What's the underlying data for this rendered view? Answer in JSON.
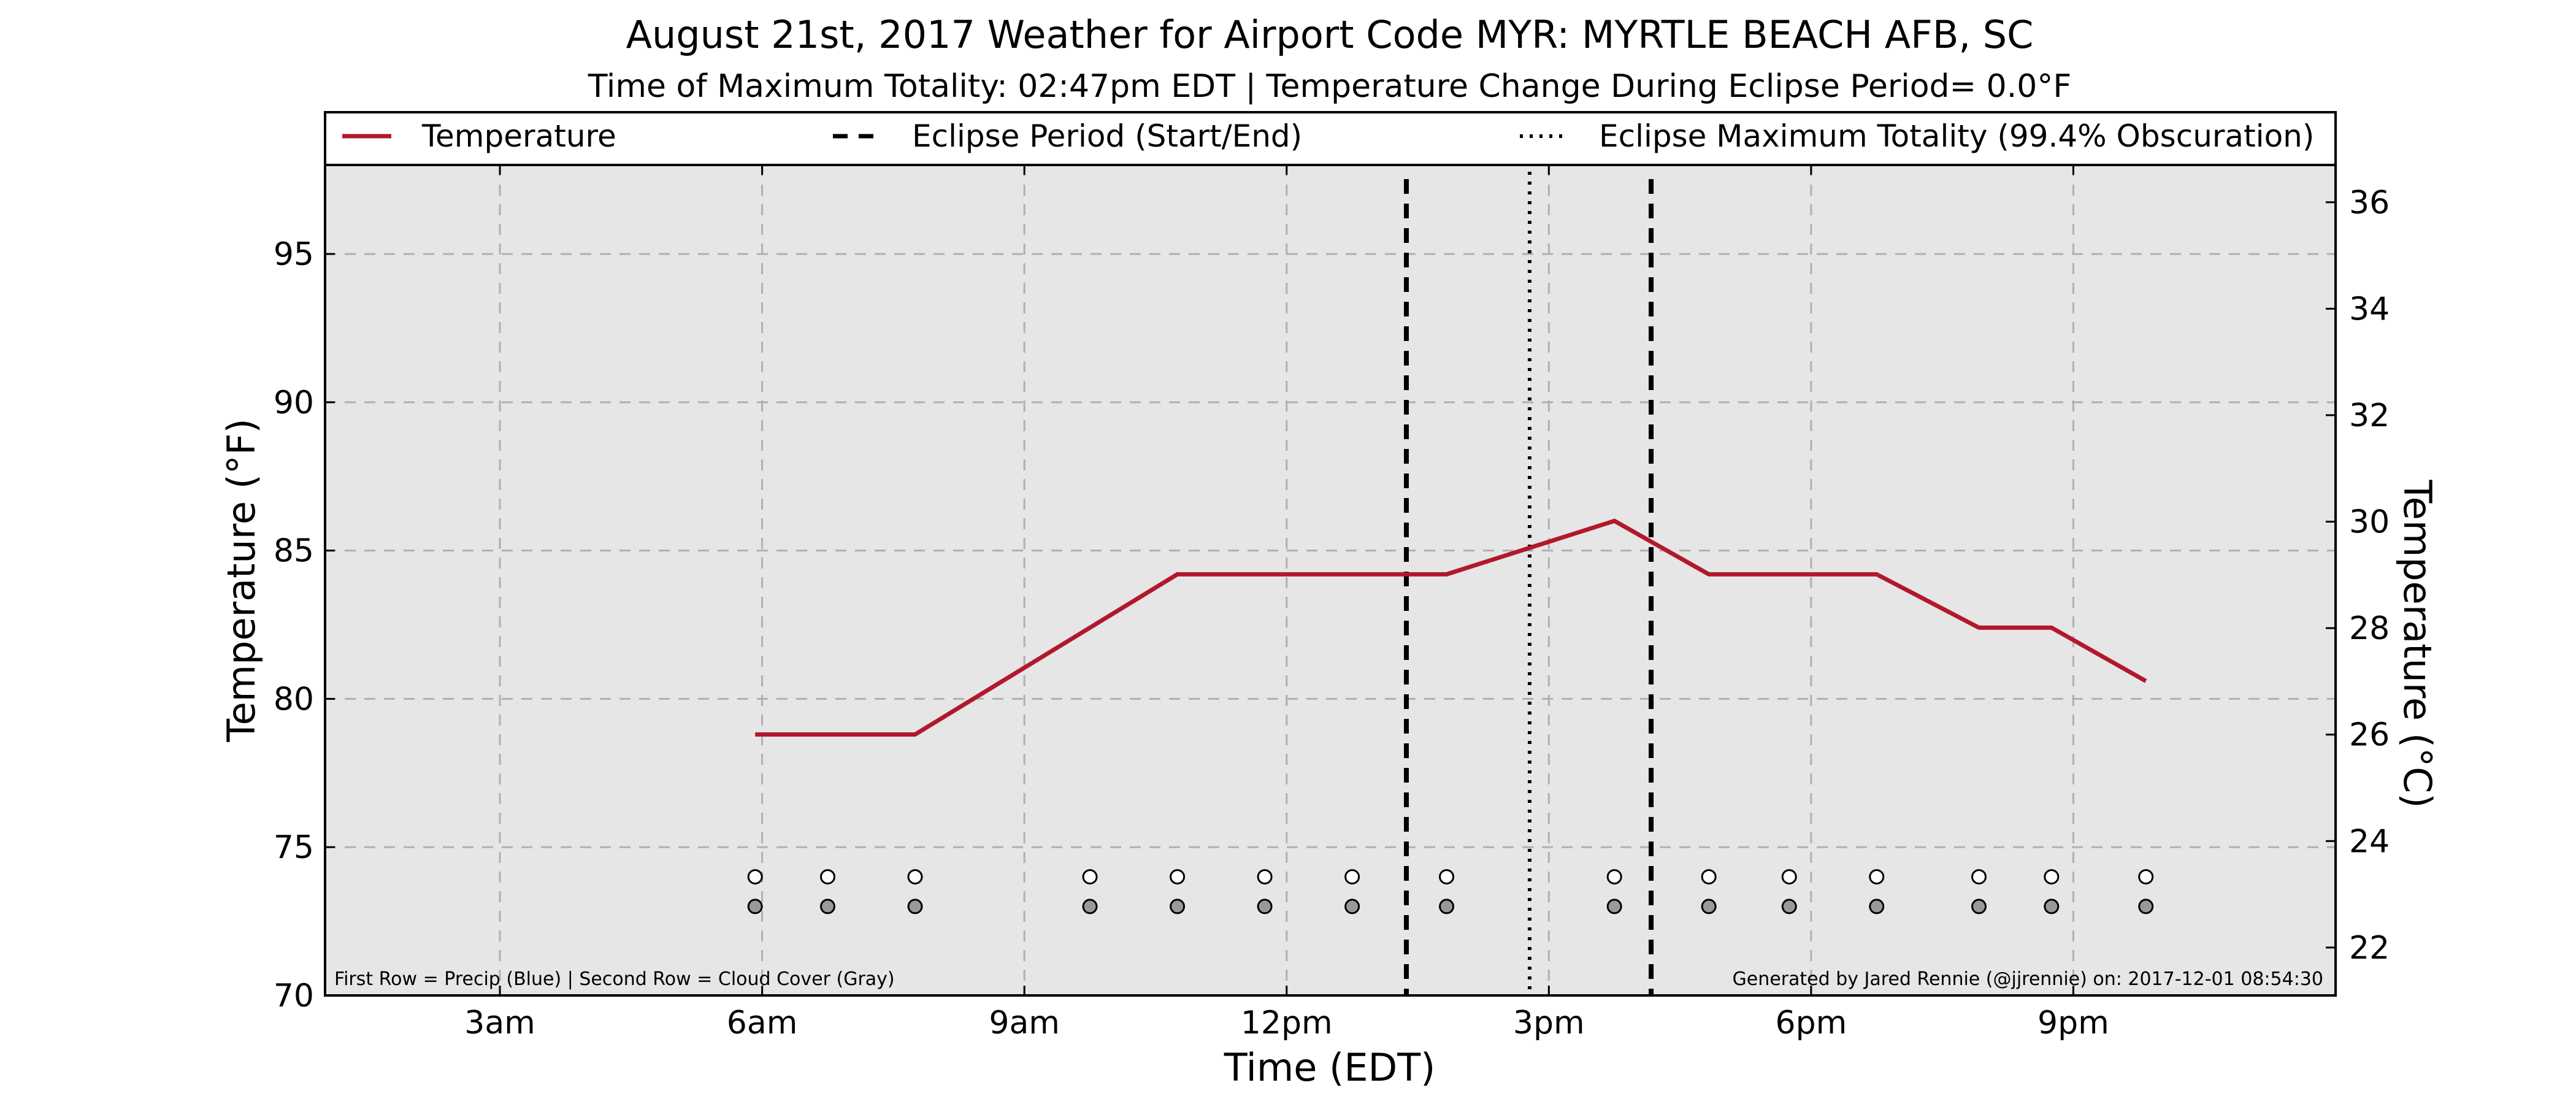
{
  "chart_data": {
    "type": "line",
    "title": "August 21st, 2017 Weather for Airport Code MYR: MYRTLE BEACH AFB, SC",
    "subtitle": "Time of Maximum Totality: 02:47pm EDT | Temperature Change During Eclipse Period= 0.0°F",
    "xlabel": "Time (EDT)",
    "ylabel": "Temperature (°F)",
    "ylabel_right": "Temperature (°C)",
    "xlim": [
      1.0,
      24.0
    ],
    "ylim": [
      70,
      98
    ],
    "ylim_right": [
      21.1,
      36.7
    ],
    "x_ticks": [
      {
        "value": 3,
        "label": "3am"
      },
      {
        "value": 6,
        "label": "6am"
      },
      {
        "value": 9,
        "label": "9am"
      },
      {
        "value": 12,
        "label": "12pm"
      },
      {
        "value": 15,
        "label": "3pm"
      },
      {
        "value": 18,
        "label": "6pm"
      },
      {
        "value": 21,
        "label": "9pm"
      }
    ],
    "y_ticks": [
      70,
      75,
      80,
      85,
      90,
      95
    ],
    "y_ticks_right": [
      22,
      24,
      26,
      28,
      30,
      32,
      34,
      36
    ],
    "grid": true,
    "legend_position": "top, full width",
    "legend": [
      {
        "label": "Temperature",
        "style": "solid",
        "color": "#b2182b"
      },
      {
        "label": "Eclipse Period (Start/End)",
        "style": "dashed",
        "color": "#000000"
      },
      {
        "label": "Eclipse Maximum Totality (99.4% Obscuration)",
        "style": "dotted",
        "color": "#000000"
      }
    ],
    "series": [
      {
        "name": "Temperature",
        "color": "#b2182b",
        "x": [
          5.92,
          6.75,
          7.75,
          10.75,
          11.75,
          12.75,
          13.83,
          15.75,
          16.83,
          17.75,
          18.75,
          19.92,
          20.75,
          21.83
        ],
        "y": [
          78.8,
          78.8,
          78.8,
          84.2,
          84.2,
          84.2,
          84.2,
          86.0,
          84.2,
          84.2,
          84.2,
          82.4,
          82.4,
          80.6
        ]
      }
    ],
    "eclipse_start": 13.37,
    "eclipse_end": 16.17,
    "eclipse_max": 14.78,
    "marker_rows": [
      {
        "name": "Precip",
        "color": "#ffffff",
        "y": 74.0
      },
      {
        "name": "Cloud Cover",
        "color": "#999999",
        "y": 73.0
      }
    ],
    "marker_x": [
      5.92,
      6.75,
      7.75,
      9.75,
      10.75,
      11.75,
      12.75,
      13.83,
      15.75,
      16.83,
      17.75,
      18.75,
      19.92,
      20.75,
      21.83
    ],
    "footnote_left": "First Row = Precip (Blue) | Second Row = Cloud Cover (Gray)",
    "footnote_right": "Generated by Jared Rennie (@jjrennie) on: 2017-12-01 08:54:30",
    "colors": {
      "plot_background": "#e6e6e6",
      "grid": "#b0b0b0"
    }
  }
}
